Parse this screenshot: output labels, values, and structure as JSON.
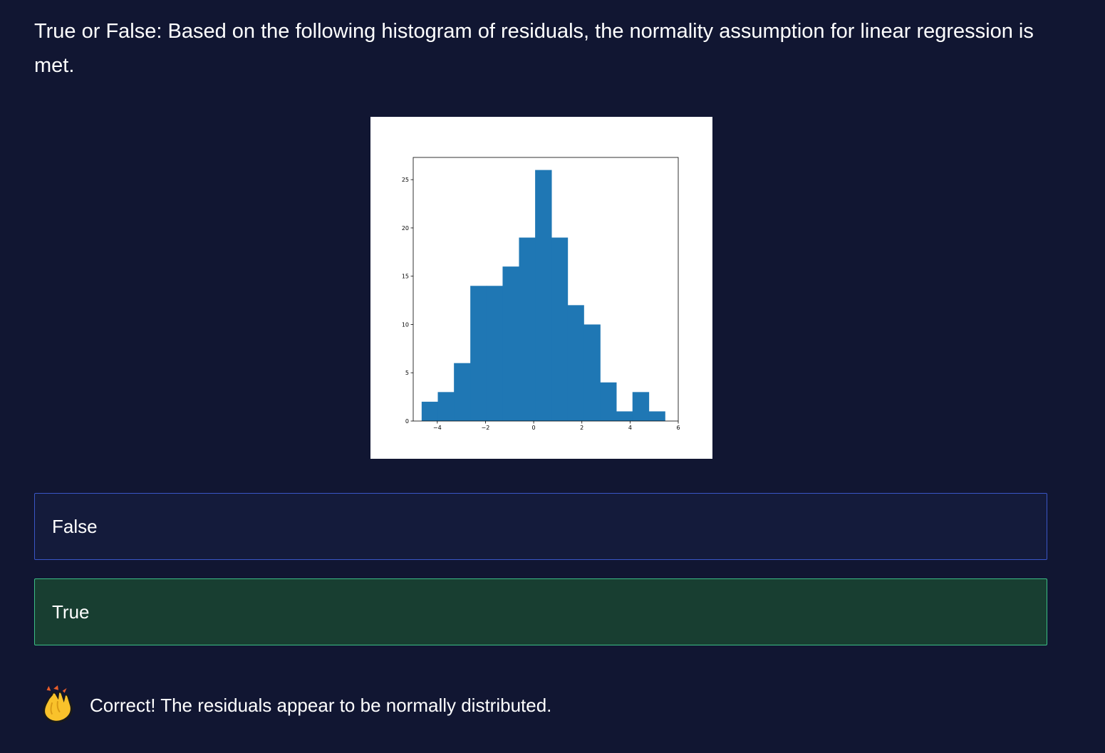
{
  "question": {
    "text": "True or False: Based on the following histogram of residuals, the normality assumption for linear regression is met."
  },
  "chart_data": {
    "type": "bar",
    "subtype": "histogram",
    "title": "",
    "xlabel": "",
    "ylabel": "",
    "xlim": [
      -5.0,
      6.0
    ],
    "ylim": [
      0,
      27.3
    ],
    "xticks": [
      -4,
      -2,
      0,
      2,
      4,
      6
    ],
    "xtick_labels": [
      "−4",
      "−2",
      "0",
      "2",
      "4",
      "6"
    ],
    "yticks": [
      0,
      5,
      10,
      15,
      20,
      25
    ],
    "ytick_labels": [
      "0",
      "5",
      "10",
      "15",
      "20",
      "25"
    ],
    "bin_edges": [
      -4.65,
      -3.98,
      -3.31,
      -2.63,
      -1.96,
      -1.29,
      -0.61,
      0.06,
      0.74,
      1.41,
      2.08,
      2.76,
      3.43,
      4.1,
      4.78,
      5.45
    ],
    "values": [
      2,
      3,
      6,
      14,
      14,
      16,
      19,
      26,
      19,
      12,
      10,
      4,
      1,
      3,
      1
    ],
    "bar_color": "#1f77b4",
    "grid": false
  },
  "options": [
    {
      "label": "False",
      "state": "neutral"
    },
    {
      "label": "True",
      "state": "correct"
    }
  ],
  "feedback": {
    "icon": "clapping-hands-icon",
    "message": "Correct! The residuals appear to be normally distributed."
  },
  "colors": {
    "background": "#111632",
    "neutral_border": "#3a56c6",
    "correct_bg": "#183e31",
    "correct_border": "#3cbf86"
  }
}
